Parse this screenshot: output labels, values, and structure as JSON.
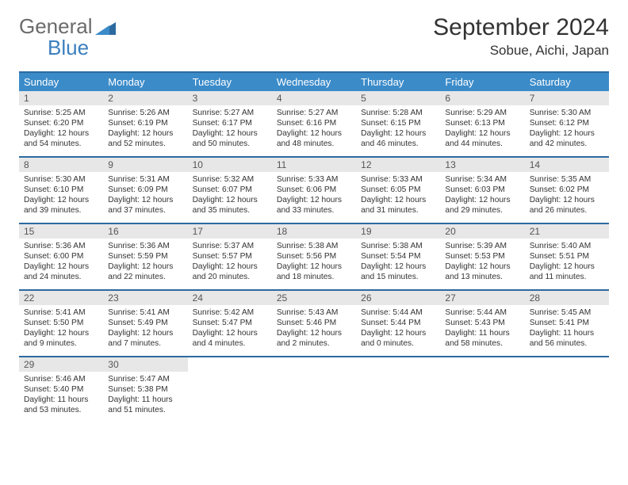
{
  "logo": {
    "word1": "General",
    "word2": "Blue"
  },
  "title": "September 2024",
  "location": "Sobue, Aichi, Japan",
  "colors": {
    "brandBlue": "#3b8bc9",
    "ruleBlue": "#2c6aa0",
    "logoGray": "#6b6b6b",
    "logoBlue": "#3b7fbf",
    "daynumBg": "#e7e7e7",
    "text": "#333333"
  },
  "dayHeaders": [
    "Sunday",
    "Monday",
    "Tuesday",
    "Wednesday",
    "Thursday",
    "Friday",
    "Saturday"
  ],
  "weeks": [
    [
      {
        "n": "1",
        "sr": "Sunrise: 5:25 AM",
        "ss": "Sunset: 6:20 PM",
        "d1": "Daylight: 12 hours",
        "d2": "and 54 minutes."
      },
      {
        "n": "2",
        "sr": "Sunrise: 5:26 AM",
        "ss": "Sunset: 6:19 PM",
        "d1": "Daylight: 12 hours",
        "d2": "and 52 minutes."
      },
      {
        "n": "3",
        "sr": "Sunrise: 5:27 AM",
        "ss": "Sunset: 6:17 PM",
        "d1": "Daylight: 12 hours",
        "d2": "and 50 minutes."
      },
      {
        "n": "4",
        "sr": "Sunrise: 5:27 AM",
        "ss": "Sunset: 6:16 PM",
        "d1": "Daylight: 12 hours",
        "d2": "and 48 minutes."
      },
      {
        "n": "5",
        "sr": "Sunrise: 5:28 AM",
        "ss": "Sunset: 6:15 PM",
        "d1": "Daylight: 12 hours",
        "d2": "and 46 minutes."
      },
      {
        "n": "6",
        "sr": "Sunrise: 5:29 AM",
        "ss": "Sunset: 6:13 PM",
        "d1": "Daylight: 12 hours",
        "d2": "and 44 minutes."
      },
      {
        "n": "7",
        "sr": "Sunrise: 5:30 AM",
        "ss": "Sunset: 6:12 PM",
        "d1": "Daylight: 12 hours",
        "d2": "and 42 minutes."
      }
    ],
    [
      {
        "n": "8",
        "sr": "Sunrise: 5:30 AM",
        "ss": "Sunset: 6:10 PM",
        "d1": "Daylight: 12 hours",
        "d2": "and 39 minutes."
      },
      {
        "n": "9",
        "sr": "Sunrise: 5:31 AM",
        "ss": "Sunset: 6:09 PM",
        "d1": "Daylight: 12 hours",
        "d2": "and 37 minutes."
      },
      {
        "n": "10",
        "sr": "Sunrise: 5:32 AM",
        "ss": "Sunset: 6:07 PM",
        "d1": "Daylight: 12 hours",
        "d2": "and 35 minutes."
      },
      {
        "n": "11",
        "sr": "Sunrise: 5:33 AM",
        "ss": "Sunset: 6:06 PM",
        "d1": "Daylight: 12 hours",
        "d2": "and 33 minutes."
      },
      {
        "n": "12",
        "sr": "Sunrise: 5:33 AM",
        "ss": "Sunset: 6:05 PM",
        "d1": "Daylight: 12 hours",
        "d2": "and 31 minutes."
      },
      {
        "n": "13",
        "sr": "Sunrise: 5:34 AM",
        "ss": "Sunset: 6:03 PM",
        "d1": "Daylight: 12 hours",
        "d2": "and 29 minutes."
      },
      {
        "n": "14",
        "sr": "Sunrise: 5:35 AM",
        "ss": "Sunset: 6:02 PM",
        "d1": "Daylight: 12 hours",
        "d2": "and 26 minutes."
      }
    ],
    [
      {
        "n": "15",
        "sr": "Sunrise: 5:36 AM",
        "ss": "Sunset: 6:00 PM",
        "d1": "Daylight: 12 hours",
        "d2": "and 24 minutes."
      },
      {
        "n": "16",
        "sr": "Sunrise: 5:36 AM",
        "ss": "Sunset: 5:59 PM",
        "d1": "Daylight: 12 hours",
        "d2": "and 22 minutes."
      },
      {
        "n": "17",
        "sr": "Sunrise: 5:37 AM",
        "ss": "Sunset: 5:57 PM",
        "d1": "Daylight: 12 hours",
        "d2": "and 20 minutes."
      },
      {
        "n": "18",
        "sr": "Sunrise: 5:38 AM",
        "ss": "Sunset: 5:56 PM",
        "d1": "Daylight: 12 hours",
        "d2": "and 18 minutes."
      },
      {
        "n": "19",
        "sr": "Sunrise: 5:38 AM",
        "ss": "Sunset: 5:54 PM",
        "d1": "Daylight: 12 hours",
        "d2": "and 15 minutes."
      },
      {
        "n": "20",
        "sr": "Sunrise: 5:39 AM",
        "ss": "Sunset: 5:53 PM",
        "d1": "Daylight: 12 hours",
        "d2": "and 13 minutes."
      },
      {
        "n": "21",
        "sr": "Sunrise: 5:40 AM",
        "ss": "Sunset: 5:51 PM",
        "d1": "Daylight: 12 hours",
        "d2": "and 11 minutes."
      }
    ],
    [
      {
        "n": "22",
        "sr": "Sunrise: 5:41 AM",
        "ss": "Sunset: 5:50 PM",
        "d1": "Daylight: 12 hours",
        "d2": "and 9 minutes."
      },
      {
        "n": "23",
        "sr": "Sunrise: 5:41 AM",
        "ss": "Sunset: 5:49 PM",
        "d1": "Daylight: 12 hours",
        "d2": "and 7 minutes."
      },
      {
        "n": "24",
        "sr": "Sunrise: 5:42 AM",
        "ss": "Sunset: 5:47 PM",
        "d1": "Daylight: 12 hours",
        "d2": "and 4 minutes."
      },
      {
        "n": "25",
        "sr": "Sunrise: 5:43 AM",
        "ss": "Sunset: 5:46 PM",
        "d1": "Daylight: 12 hours",
        "d2": "and 2 minutes."
      },
      {
        "n": "26",
        "sr": "Sunrise: 5:44 AM",
        "ss": "Sunset: 5:44 PM",
        "d1": "Daylight: 12 hours",
        "d2": "and 0 minutes."
      },
      {
        "n": "27",
        "sr": "Sunrise: 5:44 AM",
        "ss": "Sunset: 5:43 PM",
        "d1": "Daylight: 11 hours",
        "d2": "and 58 minutes."
      },
      {
        "n": "28",
        "sr": "Sunrise: 5:45 AM",
        "ss": "Sunset: 5:41 PM",
        "d1": "Daylight: 11 hours",
        "d2": "and 56 minutes."
      }
    ],
    [
      {
        "n": "29",
        "sr": "Sunrise: 5:46 AM",
        "ss": "Sunset: 5:40 PM",
        "d1": "Daylight: 11 hours",
        "d2": "and 53 minutes."
      },
      {
        "n": "30",
        "sr": "Sunrise: 5:47 AM",
        "ss": "Sunset: 5:38 PM",
        "d1": "Daylight: 11 hours",
        "d2": "and 51 minutes."
      },
      null,
      null,
      null,
      null,
      null
    ]
  ]
}
